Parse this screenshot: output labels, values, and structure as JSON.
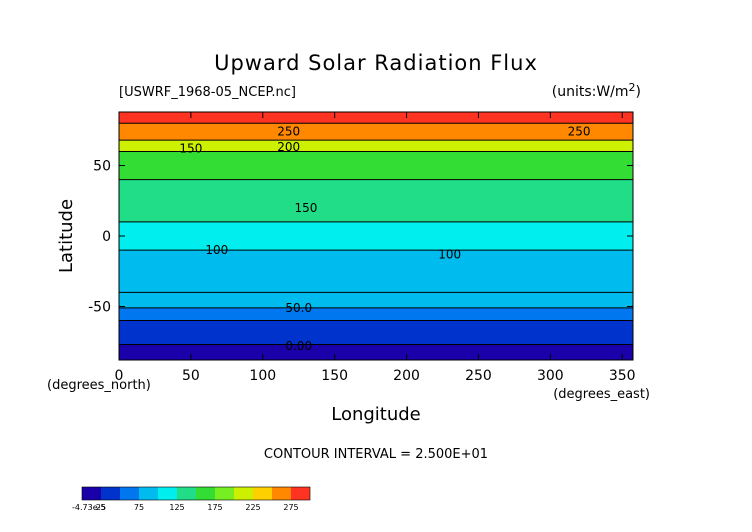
{
  "chart_data": {
    "type": "heatmap",
    "title": "Upward Solar Radiation Flux",
    "source_file": "[USWRF_1968-05_NCEP.nc]",
    "units_label": "(units:W/m^2)",
    "xlabel": "Longitude",
    "ylabel": "Latitude",
    "x_unit_label": "(degrees_east)",
    "y_unit_label": "(degrees_north)",
    "xlim": [
      0,
      357.5
    ],
    "ylim": [
      -88,
      88
    ],
    "x_ticks": [
      0,
      50,
      100,
      150,
      200,
      250,
      300,
      350
    ],
    "y_ticks": [
      -50,
      0,
      50
    ],
    "contour_interval_text": "CONTOUR INTERVAL = 2.500E+01",
    "contour_labels": [
      {
        "text": "250",
        "lon": 118,
        "lat": 74
      },
      {
        "text": "250",
        "lon": 320,
        "lat": 74
      },
      {
        "text": "200",
        "lon": 118,
        "lat": 63
      },
      {
        "text": "150",
        "lon": 50,
        "lat": 62
      },
      {
        "text": "150",
        "lon": 130,
        "lat": 20
      },
      {
        "text": "100",
        "lon": 68,
        "lat": -10
      },
      {
        "text": "100",
        "lon": 230,
        "lat": -13
      },
      {
        "text": "50.0",
        "lon": 125,
        "lat": -51
      },
      {
        "text": "0.00",
        "lon": 125,
        "lat": -78
      }
    ],
    "latitude_bands": [
      {
        "lat_min": -88,
        "lat_max": -77,
        "value": 0
      },
      {
        "lat_min": -77,
        "lat_max": -60,
        "value": 25
      },
      {
        "lat_min": -60,
        "lat_max": -51,
        "value": 50
      },
      {
        "lat_min": -51,
        "lat_max": -40,
        "value": 75
      },
      {
        "lat_min": -40,
        "lat_max": -10,
        "value": 87
      },
      {
        "lat_min": -10,
        "lat_max": 10,
        "value": 112
      },
      {
        "lat_min": 10,
        "lat_max": 40,
        "value": 140
      },
      {
        "lat_min": 40,
        "lat_max": 60,
        "value": 160
      },
      {
        "lat_min": 60,
        "lat_max": 68,
        "value": 200
      },
      {
        "lat_min": 68,
        "lat_max": 80,
        "value": 250
      },
      {
        "lat_min": 80,
        "lat_max": 88,
        "value": 280
      }
    ],
    "colorbar": {
      "min_label": "-4.73e-5",
      "tick_labels": [
        "25",
        "75",
        "125",
        "175",
        "225",
        "275"
      ],
      "tick_values": [
        25,
        75,
        125,
        175,
        225,
        275
      ],
      "range": [
        0,
        300
      ],
      "levels": [
        0,
        25,
        50,
        75,
        100,
        125,
        150,
        175,
        200,
        225,
        250,
        275,
        300
      ],
      "colors": [
        "#1a00a8",
        "#0033cc",
        "#0077ee",
        "#00bbee",
        "#00eeee",
        "#22dd88",
        "#33dd33",
        "#77ee22",
        "#ccf000",
        "#ffd000",
        "#ff8800",
        "#ff3322",
        "#ff9999"
      ]
    },
    "grid": false,
    "legend": "bottom-left colorbar"
  }
}
